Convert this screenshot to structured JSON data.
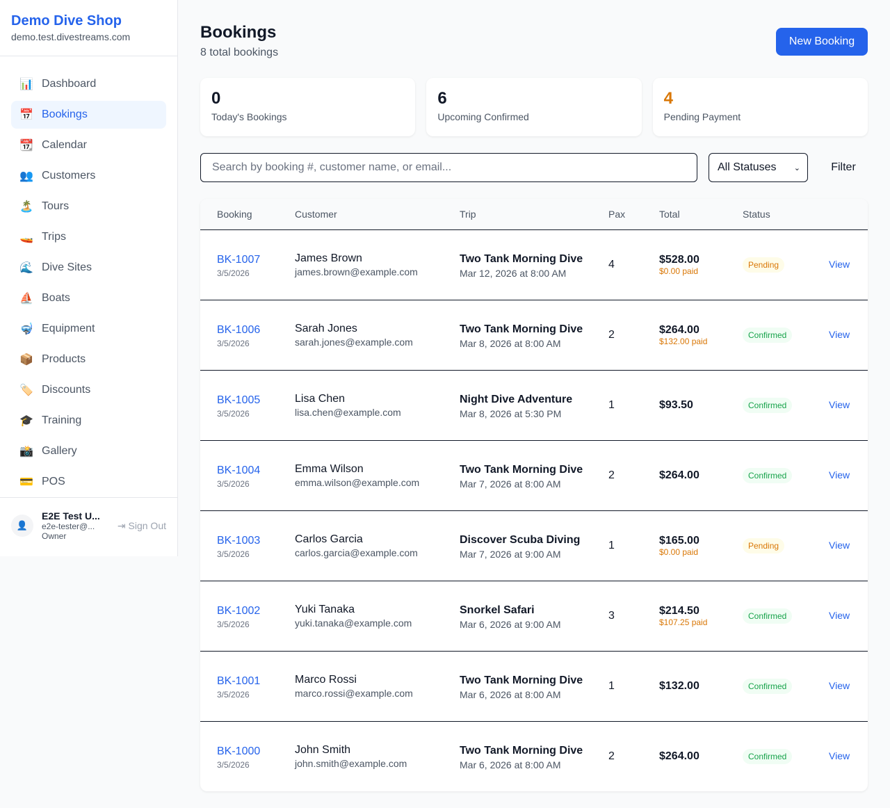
{
  "sidebar": {
    "brand": "Demo Dive Shop",
    "domain": "demo.test.divestreams.com",
    "items": [
      {
        "icon": "📊",
        "label": "Dashboard"
      },
      {
        "icon": "📅",
        "label": "Bookings"
      },
      {
        "icon": "📆",
        "label": "Calendar"
      },
      {
        "icon": "👥",
        "label": "Customers"
      },
      {
        "icon": "🏝️",
        "label": "Tours"
      },
      {
        "icon": "🚤",
        "label": "Trips"
      },
      {
        "icon": "🌊",
        "label": "Dive Sites"
      },
      {
        "icon": "⛵",
        "label": "Boats"
      },
      {
        "icon": "🤿",
        "label": "Equipment"
      },
      {
        "icon": "📦",
        "label": "Products"
      },
      {
        "icon": "🏷️",
        "label": "Discounts"
      },
      {
        "icon": "🎓",
        "label": "Training"
      },
      {
        "icon": "📸",
        "label": "Gallery"
      },
      {
        "icon": "💳",
        "label": "POS"
      }
    ],
    "active": "Bookings",
    "user": {
      "name": "E2E Test U...",
      "email": "e2e-tester@...",
      "role": "Owner",
      "sign_out": "Sign Out"
    }
  },
  "header": {
    "title": "Bookings",
    "subtitle": "8 total bookings",
    "new_button": "New Booking"
  },
  "stats": [
    {
      "value": "0",
      "label": "Today's Bookings",
      "color": "#111827"
    },
    {
      "value": "6",
      "label": "Upcoming Confirmed",
      "color": "#111827"
    },
    {
      "value": "4",
      "label": "Pending Payment",
      "color": "#d97706"
    }
  ],
  "filters": {
    "search_placeholder": "Search by booking #, customer name, or email...",
    "status_selected": "All Statuses",
    "filter_label": "Filter"
  },
  "table": {
    "columns": [
      "Booking",
      "Customer",
      "Trip",
      "Pax",
      "Total",
      "Status",
      ""
    ],
    "rows": [
      {
        "id": "BK-1007",
        "date": "3/5/2026",
        "customer": "James Brown",
        "email": "james.brown@example.com",
        "trip": "Two Tank Morning Dive",
        "trip_date": "Mar 12, 2026 at 8:00 AM",
        "pax": "4",
        "total": "$528.00",
        "paid": "$0.00 paid",
        "status": "Pending",
        "action": "View"
      },
      {
        "id": "BK-1006",
        "date": "3/5/2026",
        "customer": "Sarah Jones",
        "email": "sarah.jones@example.com",
        "trip": "Two Tank Morning Dive",
        "trip_date": "Mar 8, 2026 at 8:00 AM",
        "pax": "2",
        "total": "$264.00",
        "paid": "$132.00 paid",
        "status": "Confirmed",
        "action": "View"
      },
      {
        "id": "BK-1005",
        "date": "3/5/2026",
        "customer": "Lisa Chen",
        "email": "lisa.chen@example.com",
        "trip": "Night Dive Adventure",
        "trip_date": "Mar 8, 2026 at 5:30 PM",
        "pax": "1",
        "total": "$93.50",
        "paid": "",
        "status": "Confirmed",
        "action": "View"
      },
      {
        "id": "BK-1004",
        "date": "3/5/2026",
        "customer": "Emma Wilson",
        "email": "emma.wilson@example.com",
        "trip": "Two Tank Morning Dive",
        "trip_date": "Mar 7, 2026 at 8:00 AM",
        "pax": "2",
        "total": "$264.00",
        "paid": "",
        "status": "Confirmed",
        "action": "View"
      },
      {
        "id": "BK-1003",
        "date": "3/5/2026",
        "customer": "Carlos Garcia",
        "email": "carlos.garcia@example.com",
        "trip": "Discover Scuba Diving",
        "trip_date": "Mar 7, 2026 at 9:00 AM",
        "pax": "1",
        "total": "$165.00",
        "paid": "$0.00 paid",
        "status": "Pending",
        "action": "View"
      },
      {
        "id": "BK-1002",
        "date": "3/5/2026",
        "customer": "Yuki Tanaka",
        "email": "yuki.tanaka@example.com",
        "trip": "Snorkel Safari",
        "trip_date": "Mar 6, 2026 at 9:00 AM",
        "pax": "3",
        "total": "$214.50",
        "paid": "$107.25 paid",
        "status": "Confirmed",
        "action": "View"
      },
      {
        "id": "BK-1001",
        "date": "3/5/2026",
        "customer": "Marco Rossi",
        "email": "marco.rossi@example.com",
        "trip": "Two Tank Morning Dive",
        "trip_date": "Mar 6, 2026 at 8:00 AM",
        "pax": "1",
        "total": "$132.00",
        "paid": "",
        "status": "Confirmed",
        "action": "View"
      },
      {
        "id": "BK-1000",
        "date": "3/5/2026",
        "customer": "John Smith",
        "email": "john.smith@example.com",
        "trip": "Two Tank Morning Dive",
        "trip_date": "Mar 6, 2026 at 8:00 AM",
        "pax": "2",
        "total": "$264.00",
        "paid": "",
        "status": "Confirmed",
        "action": "View"
      }
    ]
  }
}
